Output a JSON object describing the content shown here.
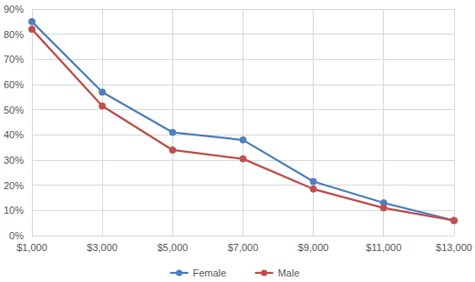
{
  "chart_data": {
    "type": "line",
    "categories": [
      "$1,000",
      "$3,000",
      "$5,000",
      "$7,000",
      "$9,000",
      "$11,000",
      "$13,000"
    ],
    "series": [
      {
        "name": "Female",
        "color": "#4f81bd",
        "marker": "circle",
        "values": [
          85,
          57,
          41,
          38,
          21.5,
          13,
          6
        ]
      },
      {
        "name": "Male",
        "color": "#c0504d",
        "marker": "circle",
        "values": [
          82,
          51.5,
          34,
          30.5,
          18.5,
          11,
          6
        ]
      }
    ],
    "ylim": [
      0,
      90
    ],
    "yticks": [
      {
        "value": 0,
        "label": "0%"
      },
      {
        "value": 10,
        "label": "10%"
      },
      {
        "value": 20,
        "label": "20%"
      },
      {
        "value": 30,
        "label": "30%"
      },
      {
        "value": 40,
        "label": "40%"
      },
      {
        "value": 50,
        "label": "50%"
      },
      {
        "value": 60,
        "label": "60%"
      },
      {
        "value": 70,
        "label": "70%"
      },
      {
        "value": 80,
        "label": "80%"
      },
      {
        "value": 90,
        "label": "90%"
      }
    ],
    "grid": true,
    "legend": "bottom"
  }
}
